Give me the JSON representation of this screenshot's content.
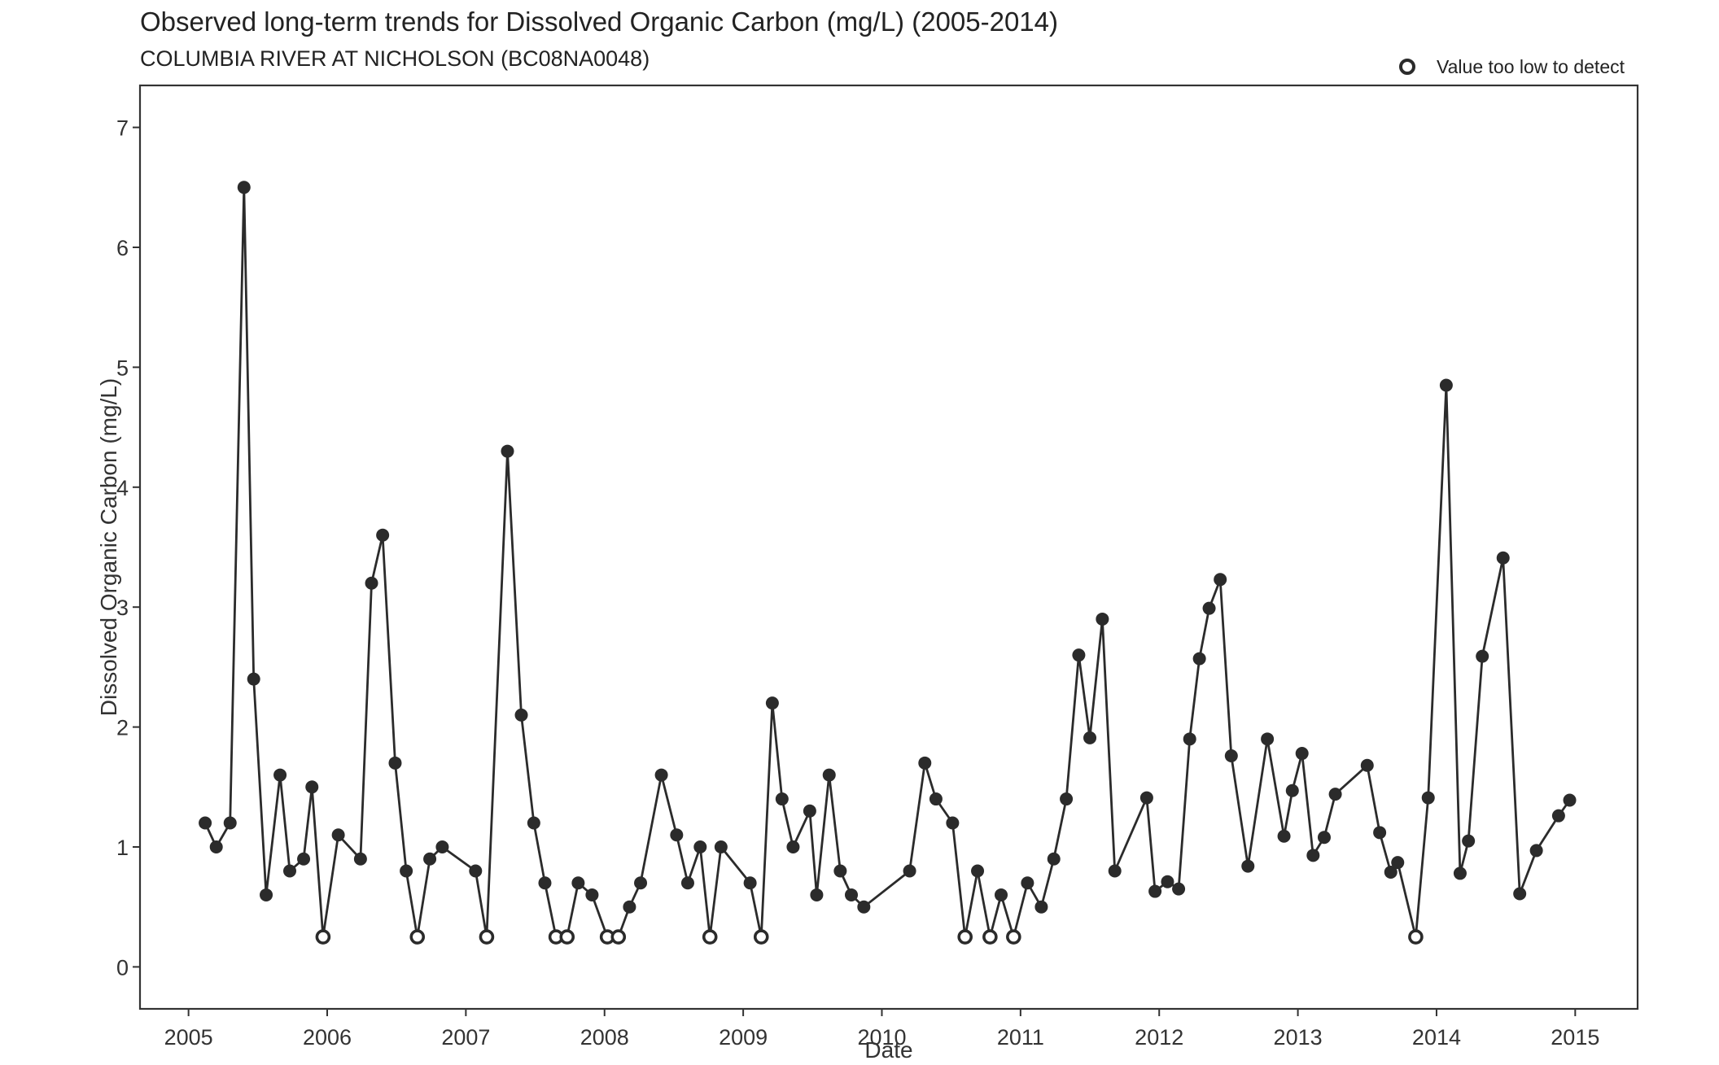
{
  "chart_data": {
    "type": "line",
    "title": "Observed long-term trends for Dissolved Organic Carbon (mg/L) (2005-2014)",
    "subtitle": "COLUMBIA RIVER AT NICHOLSON (BC08NA0048)",
    "xlabel": "Date",
    "ylabel": "Dissolved Organic Carbon (mg/L)",
    "xlim": [
      2004.65,
      2015.45
    ],
    "ylim": [
      -0.35,
      7.35
    ],
    "x_ticks": [
      2005,
      2006,
      2007,
      2008,
      2009,
      2010,
      2011,
      2012,
      2013,
      2014,
      2015
    ],
    "x_tick_labels": [
      "2005",
      "2006",
      "2007",
      "2008",
      "2009",
      "2010",
      "2011",
      "2012",
      "2013",
      "2014",
      "2015"
    ],
    "y_ticks": [
      0,
      1,
      2,
      3,
      4,
      5,
      6,
      7
    ],
    "y_tick_labels": [
      "0",
      "1",
      "2",
      "3",
      "4",
      "5",
      "6",
      "7"
    ],
    "grid": false,
    "legend": {
      "position": "top-right",
      "label": "Value too low to detect"
    },
    "colors": {
      "line": "#2b2b2b",
      "point": "#2b2b2b",
      "frame": "#333333"
    },
    "series": [
      {
        "points": [
          {
            "x": 2005.12,
            "y": 1.2,
            "below_detection": false
          },
          {
            "x": 2005.2,
            "y": 1.0,
            "below_detection": false
          },
          {
            "x": 2005.3,
            "y": 1.2,
            "below_detection": false
          },
          {
            "x": 2005.4,
            "y": 6.5,
            "below_detection": false
          },
          {
            "x": 2005.47,
            "y": 2.4,
            "below_detection": false
          },
          {
            "x": 2005.56,
            "y": 0.6,
            "below_detection": false
          },
          {
            "x": 2005.66,
            "y": 1.6,
            "below_detection": false
          },
          {
            "x": 2005.73,
            "y": 0.8,
            "below_detection": false
          },
          {
            "x": 2005.83,
            "y": 0.9,
            "below_detection": false
          },
          {
            "x": 2005.89,
            "y": 1.5,
            "below_detection": false
          },
          {
            "x": 2005.97,
            "y": 0.25,
            "below_detection": true
          },
          {
            "x": 2006.08,
            "y": 1.1,
            "below_detection": false
          },
          {
            "x": 2006.24,
            "y": 0.9,
            "below_detection": false
          },
          {
            "x": 2006.32,
            "y": 3.2,
            "below_detection": false
          },
          {
            "x": 2006.4,
            "y": 3.6,
            "below_detection": false
          },
          {
            "x": 2006.49,
            "y": 1.7,
            "below_detection": false
          },
          {
            "x": 2006.57,
            "y": 0.8,
            "below_detection": false
          },
          {
            "x": 2006.65,
            "y": 0.25,
            "below_detection": true
          },
          {
            "x": 2006.74,
            "y": 0.9,
            "below_detection": false
          },
          {
            "x": 2006.83,
            "y": 1.0,
            "below_detection": false
          },
          {
            "x": 2007.07,
            "y": 0.8,
            "below_detection": false
          },
          {
            "x": 2007.15,
            "y": 0.25,
            "below_detection": true
          },
          {
            "x": 2007.3,
            "y": 4.3,
            "below_detection": false
          },
          {
            "x": 2007.4,
            "y": 2.1,
            "below_detection": false
          },
          {
            "x": 2007.49,
            "y": 1.2,
            "below_detection": false
          },
          {
            "x": 2007.57,
            "y": 0.7,
            "below_detection": false
          },
          {
            "x": 2007.65,
            "y": 0.25,
            "below_detection": true
          },
          {
            "x": 2007.73,
            "y": 0.25,
            "below_detection": true
          },
          {
            "x": 2007.81,
            "y": 0.7,
            "below_detection": false
          },
          {
            "x": 2007.91,
            "y": 0.6,
            "below_detection": false
          },
          {
            "x": 2008.02,
            "y": 0.25,
            "below_detection": true
          },
          {
            "x": 2008.1,
            "y": 0.25,
            "below_detection": true
          },
          {
            "x": 2008.18,
            "y": 0.5,
            "below_detection": false
          },
          {
            "x": 2008.26,
            "y": 0.7,
            "below_detection": false
          },
          {
            "x": 2008.41,
            "y": 1.6,
            "below_detection": false
          },
          {
            "x": 2008.52,
            "y": 1.1,
            "below_detection": false
          },
          {
            "x": 2008.6,
            "y": 0.7,
            "below_detection": false
          },
          {
            "x": 2008.69,
            "y": 1.0,
            "below_detection": false
          },
          {
            "x": 2008.76,
            "y": 0.25,
            "below_detection": true
          },
          {
            "x": 2008.84,
            "y": 1.0,
            "below_detection": false
          },
          {
            "x": 2009.05,
            "y": 0.7,
            "below_detection": false
          },
          {
            "x": 2009.13,
            "y": 0.25,
            "below_detection": true
          },
          {
            "x": 2009.21,
            "y": 2.2,
            "below_detection": false
          },
          {
            "x": 2009.28,
            "y": 1.4,
            "below_detection": false
          },
          {
            "x": 2009.36,
            "y": 1.0,
            "below_detection": false
          },
          {
            "x": 2009.48,
            "y": 1.3,
            "below_detection": false
          },
          {
            "x": 2009.53,
            "y": 0.6,
            "below_detection": false
          },
          {
            "x": 2009.62,
            "y": 1.6,
            "below_detection": false
          },
          {
            "x": 2009.7,
            "y": 0.8,
            "below_detection": false
          },
          {
            "x": 2009.78,
            "y": 0.6,
            "below_detection": false
          },
          {
            "x": 2009.87,
            "y": 0.5,
            "below_detection": false
          },
          {
            "x": 2010.2,
            "y": 0.8,
            "below_detection": false
          },
          {
            "x": 2010.31,
            "y": 1.7,
            "below_detection": false
          },
          {
            "x": 2010.39,
            "y": 1.4,
            "below_detection": false
          },
          {
            "x": 2010.51,
            "y": 1.2,
            "below_detection": false
          },
          {
            "x": 2010.6,
            "y": 0.25,
            "below_detection": true
          },
          {
            "x": 2010.69,
            "y": 0.8,
            "below_detection": false
          },
          {
            "x": 2010.78,
            "y": 0.25,
            "below_detection": true
          },
          {
            "x": 2010.86,
            "y": 0.6,
            "below_detection": false
          },
          {
            "x": 2010.95,
            "y": 0.25,
            "below_detection": true
          },
          {
            "x": 2011.05,
            "y": 0.7,
            "below_detection": false
          },
          {
            "x": 2011.15,
            "y": 0.5,
            "below_detection": false
          },
          {
            "x": 2011.24,
            "y": 0.9,
            "below_detection": false
          },
          {
            "x": 2011.33,
            "y": 1.4,
            "below_detection": false
          },
          {
            "x": 2011.42,
            "y": 2.6,
            "below_detection": false
          },
          {
            "x": 2011.5,
            "y": 1.91,
            "below_detection": false
          },
          {
            "x": 2011.59,
            "y": 2.9,
            "below_detection": false
          },
          {
            "x": 2011.68,
            "y": 0.8,
            "below_detection": false
          },
          {
            "x": 2011.91,
            "y": 1.41,
            "below_detection": false
          },
          {
            "x": 2011.97,
            "y": 0.63,
            "below_detection": false
          },
          {
            "x": 2012.06,
            "y": 0.71,
            "below_detection": false
          },
          {
            "x": 2012.14,
            "y": 0.65,
            "below_detection": false
          },
          {
            "x": 2012.22,
            "y": 1.9,
            "below_detection": false
          },
          {
            "x": 2012.29,
            "y": 2.57,
            "below_detection": false
          },
          {
            "x": 2012.36,
            "y": 2.99,
            "below_detection": false
          },
          {
            "x": 2012.44,
            "y": 3.23,
            "below_detection": false
          },
          {
            "x": 2012.52,
            "y": 1.76,
            "below_detection": false
          },
          {
            "x": 2012.64,
            "y": 0.84,
            "below_detection": false
          },
          {
            "x": 2012.78,
            "y": 1.9,
            "below_detection": false
          },
          {
            "x": 2012.9,
            "y": 1.09,
            "below_detection": false
          },
          {
            "x": 2012.96,
            "y": 1.47,
            "below_detection": false
          },
          {
            "x": 2013.03,
            "y": 1.78,
            "below_detection": false
          },
          {
            "x": 2013.11,
            "y": 0.93,
            "below_detection": false
          },
          {
            "x": 2013.19,
            "y": 1.08,
            "below_detection": false
          },
          {
            "x": 2013.27,
            "y": 1.44,
            "below_detection": false
          },
          {
            "x": 2013.5,
            "y": 1.68,
            "below_detection": false
          },
          {
            "x": 2013.59,
            "y": 1.12,
            "below_detection": false
          },
          {
            "x": 2013.67,
            "y": 0.79,
            "below_detection": false
          },
          {
            "x": 2013.72,
            "y": 0.87,
            "below_detection": false
          },
          {
            "x": 2013.85,
            "y": 0.25,
            "below_detection": true
          },
          {
            "x": 2013.94,
            "y": 1.41,
            "below_detection": false
          },
          {
            "x": 2014.07,
            "y": 4.85,
            "below_detection": false
          },
          {
            "x": 2014.17,
            "y": 0.78,
            "below_detection": false
          },
          {
            "x": 2014.23,
            "y": 1.05,
            "below_detection": false
          },
          {
            "x": 2014.33,
            "y": 2.59,
            "below_detection": false
          },
          {
            "x": 2014.48,
            "y": 3.41,
            "below_detection": false
          },
          {
            "x": 2014.6,
            "y": 0.61,
            "below_detection": false
          },
          {
            "x": 2014.72,
            "y": 0.97,
            "below_detection": false
          },
          {
            "x": 2014.88,
            "y": 1.26,
            "below_detection": false
          },
          {
            "x": 2014.96,
            "y": 1.39,
            "below_detection": false
          }
        ]
      }
    ]
  }
}
